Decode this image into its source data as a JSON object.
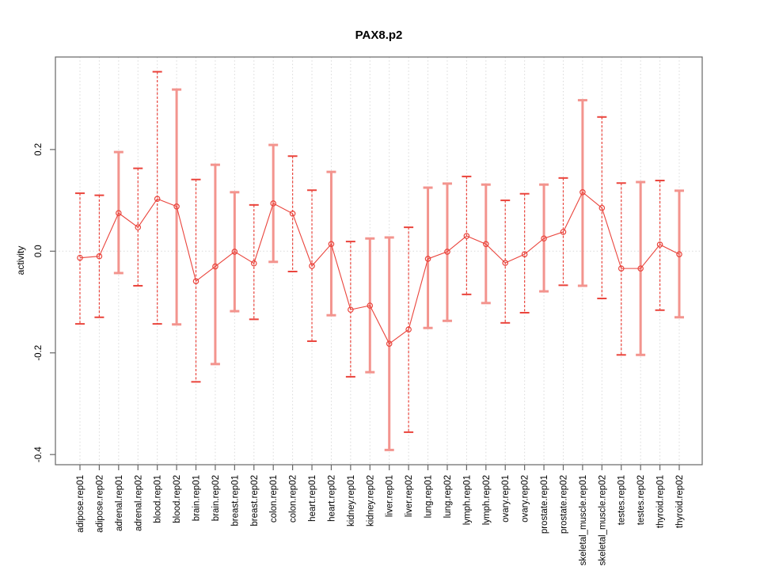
{
  "figure": {
    "background": "#ffffff"
  },
  "chart_data": {
    "type": "line",
    "subtype": "points-with-error-bars",
    "title": "PAX8.p2",
    "xlabel": "",
    "ylabel": "activity",
    "ylim": [
      -0.42,
      0.382
    ],
    "yticks": [
      {
        "value": 0.2,
        "label": "0.2"
      },
      {
        "value": 0.0,
        "label": "0.0"
      },
      {
        "value": -0.2,
        "label": "-0.2"
      },
      {
        "value": -0.4,
        "label": "-0.4"
      }
    ],
    "grid": {
      "vertical_dotted_per_category": true,
      "zero_line_dotted": true,
      "horizontal_gridlines": false
    },
    "legend": "none",
    "categories": [
      "adipose.rep01",
      "adipose.rep02",
      "adrenal.rep01",
      "adrenal.rep02",
      "blood.rep01",
      "blood.rep02",
      "brain.rep01",
      "brain.rep02",
      "breast.rep01",
      "breast.rep02",
      "colon.rep01",
      "colon.rep02",
      "heart.rep01",
      "heart.rep02",
      "kidney.rep01",
      "kidney.rep02",
      "liver.rep01",
      "liver.rep02",
      "lung.rep01",
      "lung.rep02",
      "lymph.rep01",
      "lymph.rep02",
      "ovary.rep01",
      "ovary.rep02",
      "prostate.rep01",
      "prostate.rep02",
      "skeletal_muscle.rep01",
      "skeletal_muscle.rep02",
      "testes.rep01",
      "testes.rep02",
      "thyroid.rep01",
      "thyroid.rep02"
    ],
    "series": [
      {
        "name": "activity",
        "values": [
          -0.013,
          -0.01,
          0.075,
          0.047,
          0.103,
          0.088,
          -0.059,
          -0.03,
          -0.001,
          -0.024,
          0.094,
          0.074,
          -0.029,
          0.014,
          -0.115,
          -0.107,
          -0.182,
          -0.154,
          -0.015,
          -0.001,
          0.03,
          0.014,
          -0.023,
          -0.006,
          0.025,
          0.038,
          0.116,
          0.085,
          -0.034,
          -0.034,
          0.013,
          -0.006
        ],
        "error_high": [
          0.114,
          0.11,
          0.195,
          0.163,
          0.353,
          0.318,
          0.141,
          0.17,
          0.116,
          0.091,
          0.209,
          0.187,
          0.12,
          0.156,
          0.019,
          0.025,
          0.027,
          0.047,
          0.125,
          0.133,
          0.147,
          0.131,
          0.1,
          0.113,
          0.131,
          0.144,
          0.297,
          0.264,
          0.134,
          0.136,
          0.139,
          0.119
        ],
        "error_low": [
          -0.143,
          -0.13,
          -0.043,
          -0.068,
          -0.143,
          -0.144,
          -0.257,
          -0.222,
          -0.118,
          -0.134,
          -0.021,
          -0.04,
          -0.177,
          -0.126,
          -0.247,
          -0.238,
          -0.391,
          -0.356,
          -0.151,
          -0.137,
          -0.085,
          -0.102,
          -0.141,
          -0.121,
          -0.079,
          -0.067,
          -0.068,
          -0.093,
          -0.204,
          -0.204,
          -0.116,
          -0.13
        ],
        "bar_styles": [
          "dashed",
          "dashed",
          "solid",
          "dashed",
          "dashed",
          "solid",
          "dashed",
          "solid",
          "solid",
          "dashed",
          "solid",
          "dashed",
          "dashed",
          "solid",
          "dashed",
          "solid",
          "solid",
          "dashed",
          "solid",
          "solid",
          "dashed",
          "solid",
          "dashed",
          "dashed",
          "solid",
          "dashed",
          "solid",
          "dashed",
          "dashed",
          "solid",
          "dashed",
          "solid"
        ]
      }
    ],
    "colors": {
      "point": "#ea443c",
      "connector_line": "#ea443c",
      "dashed_error_bar": "#ea443c",
      "solid_error_bar": "#f3948e",
      "grid": "#d9d9d9",
      "zero_line": "#d9d9d9",
      "frame": "#666666",
      "text": "#000000"
    }
  }
}
